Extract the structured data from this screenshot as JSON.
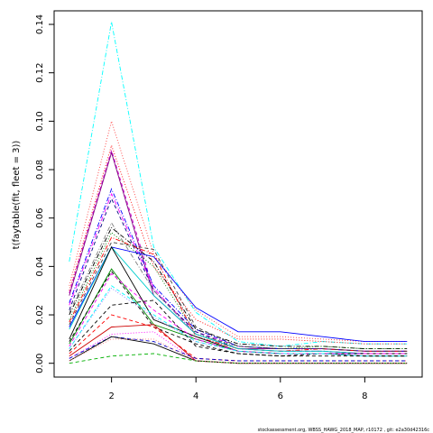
{
  "chart_data": {
    "type": "line",
    "title": "",
    "xlabel": "",
    "ylabel": "t(faytable(fit, fleet = 3))",
    "xlim": [
      0.64,
      9.36
    ],
    "ylim": [
      -0.0057,
      0.1456
    ],
    "x": [
      1,
      2,
      3,
      4,
      5,
      6,
      7,
      8,
      9
    ],
    "x_ticks": [
      2,
      4,
      6,
      8
    ],
    "x_tick_labels": [
      "2",
      "4",
      "6",
      "8"
    ],
    "y_ticks": [
      0.0,
      0.02,
      0.04,
      0.06,
      0.08,
      0.1,
      0.12,
      0.14
    ],
    "y_tick_labels": [
      "0.00",
      "0.02",
      "0.04",
      "0.06",
      "0.08",
      "0.10",
      "0.12",
      "0.14"
    ],
    "grid": false,
    "legend": "none",
    "footnote": "stockassessment.org, WBSS_HAWG_2018_MAP, r10172 , git: e2a30d42316c",
    "series": [
      {
        "color": "#00FFFF",
        "dash": "dashdot",
        "values": [
          0.042,
          0.141,
          0.048,
          0.021,
          0.009,
          0.007,
          0.009,
          0.008,
          0.008
        ]
      },
      {
        "color": "#FF4040",
        "dash": "dotted",
        "values": [
          0.032,
          0.1,
          0.045,
          0.022,
          0.011,
          0.011,
          0.01,
          0.009,
          0.009
        ]
      },
      {
        "color": "#FF0000",
        "dash": "dotted",
        "values": [
          0.03,
          0.09,
          0.04,
          0.018,
          0.01,
          0.01,
          0.009,
          0.008,
          0.008
        ]
      },
      {
        "color": "#CC00CC",
        "dash": "dashed",
        "values": [
          0.029,
          0.088,
          0.03,
          0.013,
          0.007,
          0.006,
          0.006,
          0.005,
          0.005
        ]
      },
      {
        "color": "#800080",
        "dash": "solid",
        "values": [
          0.028,
          0.087,
          0.028,
          0.012,
          0.006,
          0.006,
          0.006,
          0.005,
          0.005
        ]
      },
      {
        "color": "#0000FF",
        "dash": "dashdot",
        "values": [
          0.025,
          0.072,
          0.032,
          0.014,
          0.007,
          0.006,
          0.006,
          0.005,
          0.005
        ]
      },
      {
        "color": "#FF00FF",
        "dash": "dashdot",
        "values": [
          0.024,
          0.07,
          0.031,
          0.012,
          0.006,
          0.005,
          0.005,
          0.004,
          0.004
        ]
      },
      {
        "color": "#000080",
        "dash": "dashed",
        "values": [
          0.022,
          0.068,
          0.03,
          0.013,
          0.006,
          0.005,
          0.005,
          0.004,
          0.004
        ]
      },
      {
        "color": "#808080",
        "dash": "dashdot",
        "values": [
          0.021,
          0.058,
          0.03,
          0.012,
          0.006,
          0.005,
          0.005,
          0.004,
          0.004
        ]
      },
      {
        "color": "#000000",
        "dash": "dashdot",
        "values": [
          0.02,
          0.056,
          0.042,
          0.014,
          0.008,
          0.007,
          0.007,
          0.006,
          0.006
        ]
      },
      {
        "color": "#008000",
        "dash": "dotted",
        "values": [
          0.018,
          0.054,
          0.04,
          0.012,
          0.007,
          0.006,
          0.007,
          0.006,
          0.006
        ]
      },
      {
        "color": "#FF0000",
        "dash": "dashdot",
        "values": [
          0.017,
          0.052,
          0.045,
          0.011,
          0.006,
          0.005,
          0.006,
          0.005,
          0.005
        ]
      },
      {
        "color": "#404040",
        "dash": "dashed",
        "values": [
          0.016,
          0.05,
          0.047,
          0.015,
          0.007,
          0.006,
          0.006,
          0.005,
          0.005
        ]
      },
      {
        "color": "#0000FF",
        "dash": "solid",
        "values": [
          0.015,
          0.048,
          0.044,
          0.023,
          0.013,
          0.013,
          0.011,
          0.009,
          0.009
        ]
      },
      {
        "color": "#00CDCD",
        "dash": "solid",
        "values": [
          0.014,
          0.048,
          0.028,
          0.012,
          0.006,
          0.005,
          0.005,
          0.004,
          0.004
        ]
      },
      {
        "color": "#000000",
        "dash": "solid",
        "values": [
          0.01,
          0.048,
          0.018,
          0.011,
          0.005,
          0.004,
          0.004,
          0.004,
          0.004
        ]
      },
      {
        "color": "#008B00",
        "dash": "solid",
        "values": [
          0.008,
          0.039,
          0.016,
          0.01,
          0.005,
          0.004,
          0.004,
          0.003,
          0.003
        ]
      },
      {
        "color": "#000000",
        "dash": "dashed",
        "values": [
          0.009,
          0.038,
          0.015,
          0.008,
          0.004,
          0.003,
          0.004,
          0.003,
          0.003
        ]
      },
      {
        "color": "#FF00FF",
        "dash": "dashed",
        "values": [
          0.007,
          0.037,
          0.022,
          0.01,
          0.005,
          0.004,
          0.004,
          0.004,
          0.004
        ]
      },
      {
        "color": "#00FFFF",
        "dash": "dashed",
        "values": [
          0.006,
          0.032,
          0.02,
          0.009,
          0.005,
          0.004,
          0.004,
          0.003,
          0.003
        ]
      },
      {
        "color": "#8080FF",
        "dash": "dotted",
        "values": [
          0.006,
          0.031,
          0.019,
          0.009,
          0.005,
          0.004,
          0.004,
          0.003,
          0.003
        ]
      },
      {
        "color": "#000000",
        "dash": "dashed",
        "values": [
          0.005,
          0.024,
          0.026,
          0.007,
          0.004,
          0.003,
          0.003,
          0.003,
          0.003
        ]
      },
      {
        "color": "#FF0000",
        "dash": "dashed",
        "values": [
          0.004,
          0.02,
          0.015,
          0.002,
          0.001,
          0.001,
          0.001,
          0.001,
          0.001
        ]
      },
      {
        "color": "#CD0000",
        "dash": "solid",
        "values": [
          0.003,
          0.015,
          0.016,
          0.001,
          0.0,
          0.0,
          0.0,
          0.0,
          0.0
        ]
      },
      {
        "color": "#FF00FF",
        "dash": "dotted",
        "values": [
          0.002,
          0.012,
          0.013,
          0.001,
          0.0,
          0.0,
          0.0,
          0.0,
          0.0
        ]
      },
      {
        "color": "#0000CD",
        "dash": "dashed",
        "values": [
          0.002,
          0.011,
          0.009,
          0.002,
          0.001,
          0.001,
          0.001,
          0.001,
          0.001
        ]
      },
      {
        "color": "#000000",
        "dash": "solid",
        "values": [
          0.001,
          0.011,
          0.008,
          0.001,
          0.0,
          0.0,
          0.0,
          0.0,
          0.0
        ]
      },
      {
        "color": "#00B000",
        "dash": "dashed",
        "values": [
          0.0,
          0.003,
          0.004,
          0.001,
          0.0,
          0.0,
          0.0,
          0.0,
          0.0
        ]
      },
      {
        "color": "#FF8080",
        "dash": "dotted",
        "values": [
          0.001,
          0.01,
          0.01,
          0.001,
          0.0,
          0.0,
          0.0,
          0.0,
          0.0
        ]
      }
    ]
  }
}
